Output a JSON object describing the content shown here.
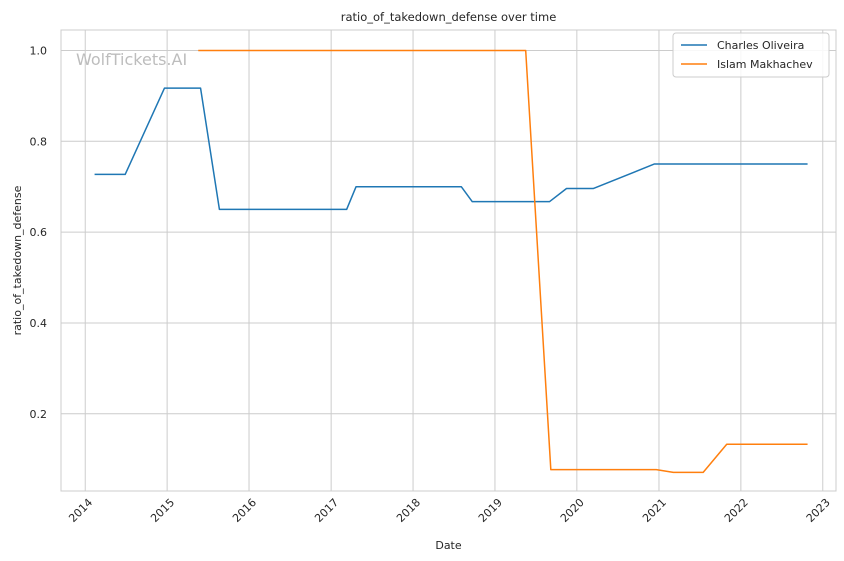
{
  "chart_data": {
    "type": "line",
    "title": "ratio_of_takedown_defense over time",
    "xlabel": "Date",
    "ylabel": "ratio_of_takedown_defense",
    "watermark": "WolfTickets.AI",
    "x_ticks": [
      "2014",
      "2015",
      "2016",
      "2017",
      "2018",
      "2019",
      "2020",
      "2021",
      "2022",
      "2023"
    ],
    "y_ticks": [
      "0.2",
      "0.4",
      "0.6",
      "0.8",
      "1.0"
    ],
    "xlim": [
      "2013-09-15",
      "2023-03-01"
    ],
    "ylim": [
      0.03,
      1.045
    ],
    "grid": true,
    "legend_position": "top-right",
    "series": [
      {
        "name": "Charles Oliveira",
        "color": "#1f77b4",
        "points": [
          [
            "2014-02-15",
            0.727
          ],
          [
            "2014-06-28",
            0.727
          ],
          [
            "2014-12-20",
            0.917
          ],
          [
            "2015-05-30",
            0.917
          ],
          [
            "2015-08-22",
            0.65
          ],
          [
            "2017-03-11",
            0.65
          ],
          [
            "2017-04-22",
            0.7
          ],
          [
            "2018-08-04",
            0.7
          ],
          [
            "2018-09-22",
            0.667
          ],
          [
            "2019-09-01",
            0.667
          ],
          [
            "2019-11-16",
            0.696
          ],
          [
            "2020-03-14",
            0.696
          ],
          [
            "2020-12-12",
            0.75
          ],
          [
            "2022-10-22",
            0.75
          ]
        ]
      },
      {
        "name": "Islam Makhachev",
        "color": "#ff7f0e",
        "points": [
          [
            "2015-05-23",
            1.0
          ],
          [
            "2019-05-18",
            1.0
          ],
          [
            "2019-09-07",
            0.077
          ],
          [
            "2020-12-20",
            0.077
          ],
          [
            "2021-03-06",
            0.071
          ],
          [
            "2021-07-17",
            0.071
          ],
          [
            "2021-10-30",
            0.133
          ],
          [
            "2022-10-22",
            0.133
          ]
        ]
      }
    ]
  }
}
